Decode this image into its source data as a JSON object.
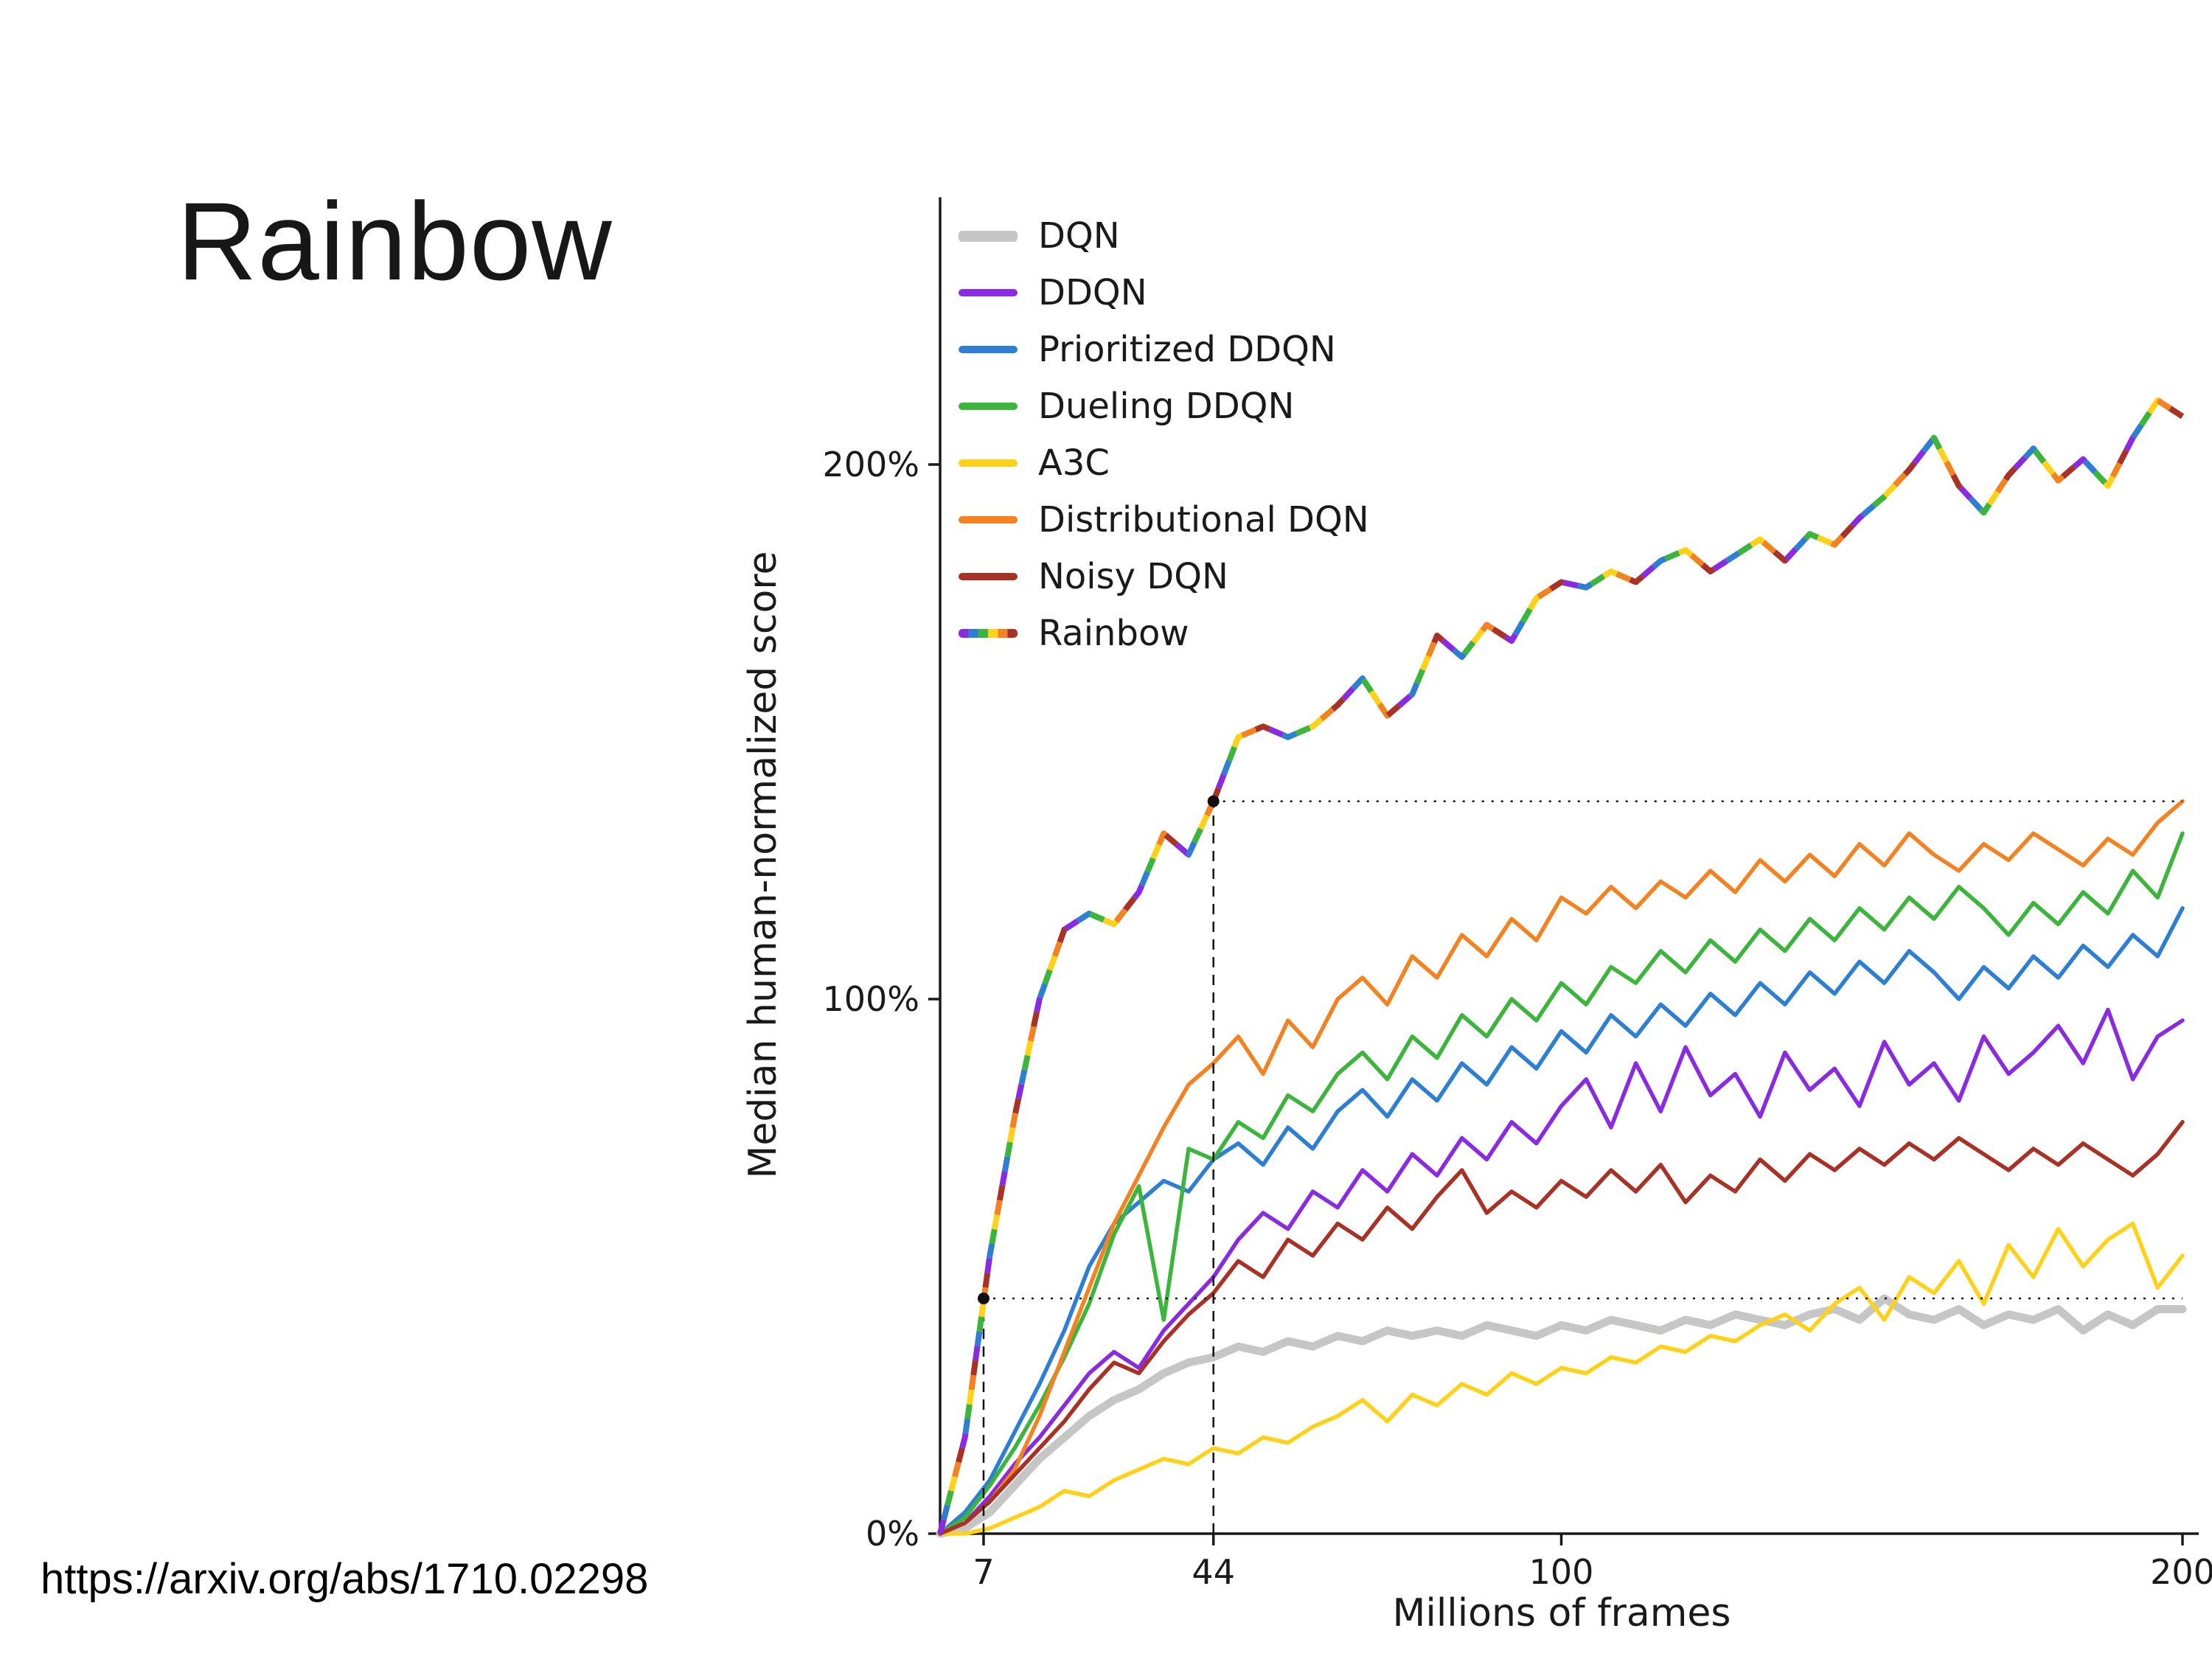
{
  "slide": {
    "title": "Rainbow",
    "source_link": "https://arxiv.org/abs/1710.02298"
  },
  "chart_data": {
    "type": "line",
    "title": "",
    "xlabel": "Millions of frames",
    "ylabel": "Median human-normalized score",
    "xlim": [
      0,
      200
    ],
    "ylim": [
      0,
      250
    ],
    "x_ticks": [
      7,
      44,
      100,
      200
    ],
    "y_ticks": [
      0,
      100,
      200
    ],
    "y_tick_labels": [
      "0%",
      "100%",
      "200%"
    ],
    "grid": false,
    "legend_position": "upper left",
    "x": [
      0,
      4,
      8,
      12,
      16,
      20,
      24,
      28,
      32,
      36,
      40,
      44,
      48,
      52,
      56,
      60,
      64,
      68,
      72,
      76,
      80,
      84,
      88,
      92,
      96,
      100,
      104,
      108,
      112,
      116,
      120,
      124,
      128,
      132,
      136,
      140,
      144,
      148,
      152,
      156,
      160,
      164,
      168,
      172,
      176,
      180,
      184,
      188,
      192,
      196,
      200
    ],
    "series": [
      {
        "name": "DQN",
        "color": "#c6c6c6",
        "width": 11,
        "values": [
          0,
          1,
          4,
          9,
          14,
          18,
          22,
          25,
          27,
          30,
          32,
          33,
          35,
          34,
          36,
          35,
          37,
          36,
          38,
          37,
          38,
          37,
          39,
          38,
          37,
          39,
          38,
          40,
          39,
          38,
          40,
          39,
          41,
          40,
          39,
          41,
          42,
          40,
          44,
          41,
          40,
          42,
          39,
          41,
          40,
          42,
          38,
          41,
          39,
          42,
          42
        ]
      },
      {
        "name": "DDQN",
        "color": "#8a2be2",
        "width": 5.5,
        "values": [
          0,
          2,
          7,
          13,
          18,
          24,
          30,
          34,
          31,
          38,
          43,
          48,
          55,
          60,
          57,
          64,
          61,
          68,
          64,
          71,
          67,
          74,
          70,
          77,
          73,
          80,
          85,
          76,
          88,
          79,
          91,
          82,
          86,
          78,
          90,
          83,
          87,
          80,
          92,
          84,
          88,
          81,
          93,
          86,
          90,
          95,
          88,
          98,
          85,
          93,
          96
        ]
      },
      {
        "name": "Prioritized DDQN",
        "color": "#2d7fd3",
        "width": 5.5,
        "values": [
          0,
          4,
          10,
          19,
          28,
          38,
          50,
          58,
          62,
          66,
          64,
          70,
          73,
          69,
          76,
          72,
          79,
          83,
          78,
          85,
          81,
          88,
          84,
          91,
          87,
          94,
          90,
          97,
          93,
          99,
          95,
          101,
          97,
          103,
          99,
          105,
          101,
          107,
          103,
          109,
          105,
          100,
          106,
          102,
          108,
          104,
          110,
          106,
          112,
          108,
          117
        ]
      },
      {
        "name": "Dueling DDQN",
        "color": "#3cb53c",
        "width": 5.5,
        "values": [
          0,
          3,
          9,
          16,
          24,
          33,
          43,
          56,
          65,
          40,
          72,
          70,
          77,
          74,
          82,
          79,
          86,
          90,
          85,
          93,
          89,
          97,
          93,
          100,
          96,
          103,
          99,
          106,
          103,
          109,
          105,
          111,
          107,
          113,
          109,
          115,
          111,
          117,
          113,
          119,
          115,
          121,
          117,
          112,
          118,
          114,
          120,
          116,
          124,
          119,
          131
        ]
      },
      {
        "name": "A3C",
        "color": "#ffd118",
        "width": 5.5,
        "values": [
          0,
          0,
          1,
          3,
          5,
          8,
          7,
          10,
          12,
          14,
          13,
          16,
          15,
          18,
          17,
          20,
          22,
          25,
          21,
          26,
          24,
          28,
          26,
          30,
          28,
          31,
          30,
          33,
          32,
          35,
          34,
          37,
          36,
          39,
          41,
          38,
          43,
          46,
          40,
          48,
          45,
          51,
          43,
          54,
          48,
          57,
          50,
          55,
          58,
          46,
          52
        ]
      },
      {
        "name": "Distributional DQN",
        "color": "#f58220",
        "width": 5.5,
        "values": [
          0,
          2,
          6,
          12,
          22,
          34,
          46,
          58,
          67,
          76,
          84,
          88,
          93,
          86,
          96,
          91,
          100,
          104,
          99,
          108,
          104,
          112,
          108,
          115,
          111,
          119,
          116,
          121,
          117,
          122,
          119,
          124,
          120,
          126,
          122,
          127,
          123,
          129,
          125,
          131,
          127,
          124,
          129,
          126,
          131,
          128,
          125,
          130,
          127,
          133,
          137
        ]
      },
      {
        "name": "Noisy DQN",
        "color": "#a93226",
        "width": 5.5,
        "values": [
          0,
          2,
          6,
          11,
          16,
          21,
          27,
          32,
          30,
          36,
          41,
          45,
          51,
          48,
          55,
          52,
          58,
          55,
          61,
          57,
          63,
          68,
          60,
          64,
          61,
          66,
          63,
          68,
          64,
          69,
          62,
          67,
          64,
          70,
          66,
          71,
          68,
          72,
          69,
          73,
          70,
          74,
          71,
          68,
          72,
          69,
          73,
          70,
          67,
          71,
          77
        ]
      },
      {
        "name": "Rainbow",
        "color": null,
        "width": 8,
        "colors": [
          "#8a2be2",
          "#2d7fd3",
          "#3cb53c",
          "#ffd118",
          "#f58220",
          "#a93226"
        ],
        "values": [
          0,
          18,
          52,
          78,
          100,
          113,
          116,
          114,
          120,
          131,
          127,
          137,
          149,
          151,
          149,
          151,
          155,
          160,
          153,
          157,
          168,
          164,
          170,
          167,
          175,
          178,
          177,
          180,
          178,
          182,
          184,
          180,
          183,
          186,
          182,
          187,
          185,
          190,
          194,
          199,
          205,
          196,
          191,
          198,
          203,
          197,
          201,
          196,
          205,
          212,
          209
        ]
      }
    ],
    "annotations": {
      "markers": [
        {
          "x": 7,
          "y": 44
        },
        {
          "x": 44,
          "y": 137
        }
      ],
      "vlines": [
        {
          "x": 7,
          "y": 44
        },
        {
          "x": 44,
          "y": 137
        }
      ],
      "hlines": [
        {
          "y": 44,
          "x1": 7,
          "x2": 200
        },
        {
          "y": 137,
          "x1": 44,
          "x2": 200
        }
      ]
    }
  }
}
